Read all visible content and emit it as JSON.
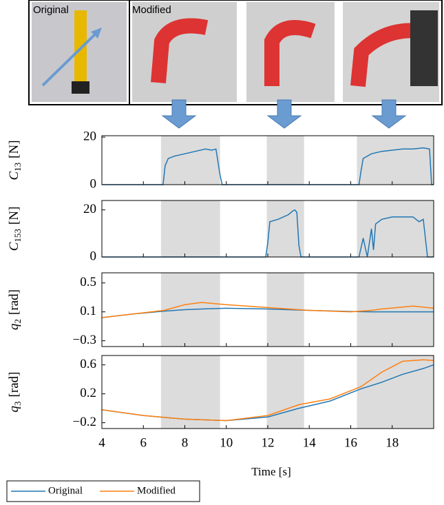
{
  "figure": {
    "original_label": "Original",
    "modified_label": "Modified"
  },
  "chart_data": [
    {
      "type": "line",
      "ylabel": {
        "symbol": "C",
        "subscript": "13",
        "unit": "[N]"
      },
      "xlim": [
        4,
        20
      ],
      "ylim": [
        0,
        20.6
      ],
      "yticks": [
        0,
        20
      ],
      "shaded_regions": [
        [
          6.85,
          9.7
        ],
        [
          11.95,
          13.75
        ],
        [
          16.3,
          20
        ]
      ],
      "x": [
        4,
        6.95,
        7.05,
        7.2,
        7.5,
        8,
        8.5,
        9,
        9.3,
        9.5,
        9.7,
        9.8,
        16.4,
        16.5,
        16.6,
        17,
        17.5,
        18,
        18.5,
        19,
        19.5,
        19.8,
        19.9,
        20
      ],
      "series": [
        {
          "name": "Original",
          "color": "#1f77b4",
          "values": [
            0,
            0,
            8,
            11,
            12,
            13,
            14,
            15,
            14.5,
            15,
            4,
            0,
            0,
            6,
            11,
            13,
            14,
            14.5,
            15,
            15,
            15.5,
            15,
            0,
            0
          ]
        }
      ]
    },
    {
      "type": "line",
      "ylabel": {
        "symbol": "C",
        "subscript": "153",
        "unit": "[N]"
      },
      "xlim": [
        4,
        20
      ],
      "ylim": [
        0,
        24
      ],
      "yticks": [
        0,
        20
      ],
      "shaded_regions": [
        [
          6.85,
          9.7
        ],
        [
          11.95,
          13.75
        ],
        [
          16.3,
          20
        ]
      ],
      "x": [
        4,
        11.9,
        12,
        12.1,
        12.5,
        13,
        13.2,
        13.3,
        13.4,
        13.5,
        13.6,
        16.4,
        16.6,
        16.8,
        17,
        17.1,
        17.2,
        17.5,
        18,
        19,
        19.3,
        19.5,
        19.7,
        20
      ],
      "series": [
        {
          "name": "Original",
          "color": "#1f77b4",
          "values": [
            0,
            0,
            6,
            15,
            16,
            18,
            19.5,
            20,
            19,
            5,
            0,
            0,
            8,
            0,
            12,
            3,
            14,
            16,
            17,
            17,
            15,
            16,
            0,
            0
          ]
        }
      ]
    },
    {
      "type": "line",
      "ylabel": {
        "symbol": "q",
        "subscript": "2",
        "unit": "[rad]"
      },
      "xlim": [
        4,
        20
      ],
      "ylim": [
        -0.38,
        0.64
      ],
      "yticks": [
        {
          "value": -0.3,
          "label": "−0.3"
        },
        0.1,
        0.5
      ],
      "shaded_regions": [
        [
          6.85,
          9.7
        ],
        [
          11.95,
          13.75
        ],
        [
          16.3,
          20
        ]
      ],
      "x": [
        4,
        5.5,
        7,
        8,
        8.8,
        10,
        12,
        14,
        16,
        17,
        17.5,
        19,
        20
      ],
      "series": [
        {
          "name": "Original",
          "color": "#1f77b4",
          "values": [
            0.02,
            0.07,
            0.11,
            0.13,
            0.14,
            0.15,
            0.14,
            0.12,
            0.105,
            0.1,
            0.1,
            0.1,
            0.1
          ]
        },
        {
          "name": "Modified",
          "color": "#ff7f0e",
          "values": [
            0.02,
            0.07,
            0.12,
            0.2,
            0.23,
            0.2,
            0.16,
            0.12,
            0.1,
            0.12,
            0.14,
            0.18,
            0.15
          ]
        }
      ]
    },
    {
      "type": "line",
      "ylabel": {
        "symbol": "q",
        "subscript": "3",
        "unit": "[rad]"
      },
      "xlabel": "Time [s]",
      "xlim": [
        4,
        20
      ],
      "ylim": [
        -0.28,
        0.73
      ],
      "yticks": [
        {
          "value": -0.2,
          "label": "−0.2"
        },
        0.2,
        0.6
      ],
      "xticks": [
        4,
        6,
        8,
        10,
        12,
        14,
        16,
        18
      ],
      "shaded_regions": [
        [
          6.85,
          9.7
        ],
        [
          11.95,
          13.75
        ],
        [
          16.3,
          20
        ]
      ],
      "x": [
        4,
        6,
        8,
        10,
        12,
        13.5,
        15,
        16.5,
        17.5,
        18.5,
        19.5,
        20
      ],
      "series": [
        {
          "name": "Original",
          "color": "#1f77b4",
          "values": [
            -0.02,
            -0.1,
            -0.15,
            -0.17,
            -0.12,
            0,
            0.1,
            0.27,
            0.36,
            0.47,
            0.55,
            0.6
          ]
        },
        {
          "name": "Modified",
          "color": "#ff7f0e",
          "values": [
            -0.02,
            -0.1,
            -0.15,
            -0.17,
            -0.1,
            0.05,
            0.13,
            0.3,
            0.5,
            0.65,
            0.67,
            0.66
          ]
        }
      ]
    }
  ]
}
